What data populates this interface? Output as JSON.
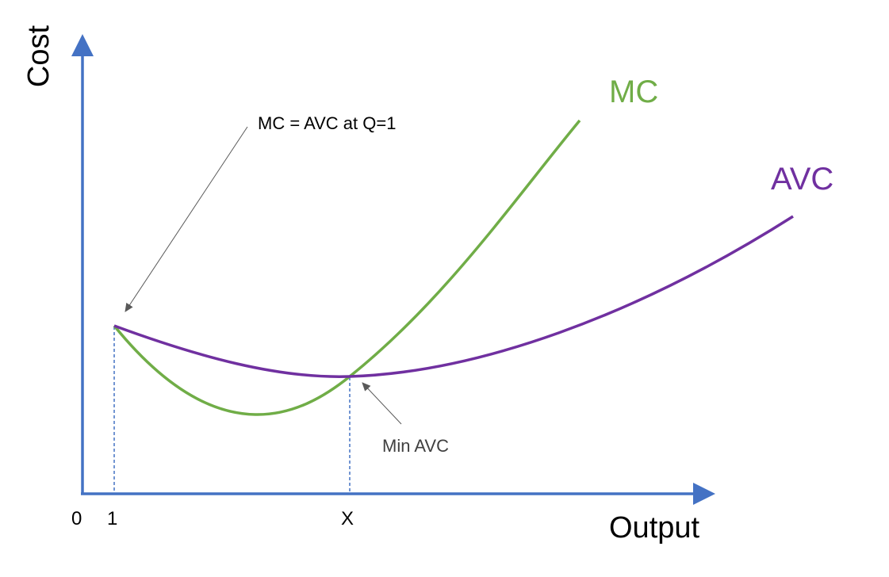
{
  "axes": {
    "y_label": "Cost",
    "x_label": "Output",
    "origin_label": "0",
    "x_ticks": [
      "1",
      "X"
    ]
  },
  "curves": {
    "mc": {
      "label": "MC",
      "color": "#70ad47"
    },
    "avc": {
      "label": "AVC",
      "color": "#7030a0"
    }
  },
  "annotations": {
    "start_point": "MC = AVC at Q=1",
    "min_avc": "Min AVC"
  },
  "colors": {
    "axis": "#4472c4",
    "annotation_arrow": "#595959"
  }
}
